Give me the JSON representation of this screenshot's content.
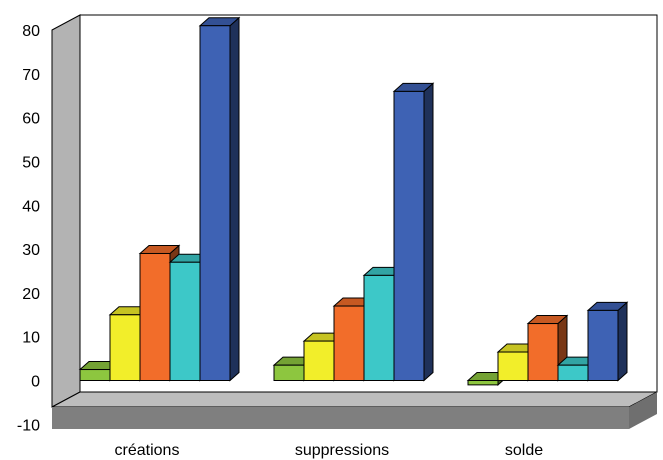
{
  "chart_data": {
    "type": "bar",
    "title": "",
    "xlabel": "",
    "ylabel": "",
    "ylim": [
      -10,
      80
    ],
    "yticks": [
      80,
      70,
      60,
      50,
      40,
      30,
      20,
      10,
      0,
      -10
    ],
    "grid": false,
    "legend": "none",
    "categories": [
      "créations",
      "suppressions",
      "solde"
    ],
    "series": [
      {
        "color": "#8dc63f",
        "values": [
          2.5,
          3.5,
          -1
        ]
      },
      {
        "color": "#f2ee2a",
        "values": [
          15,
          9,
          6.5
        ]
      },
      {
        "color": "#f26d2a",
        "values": [
          29,
          17,
          13
        ]
      },
      {
        "color": "#3dc8c8",
        "values": [
          27,
          24,
          3.5
        ]
      },
      {
        "color": "#3e62b4",
        "values": [
          81,
          66,
          16
        ]
      }
    ]
  }
}
